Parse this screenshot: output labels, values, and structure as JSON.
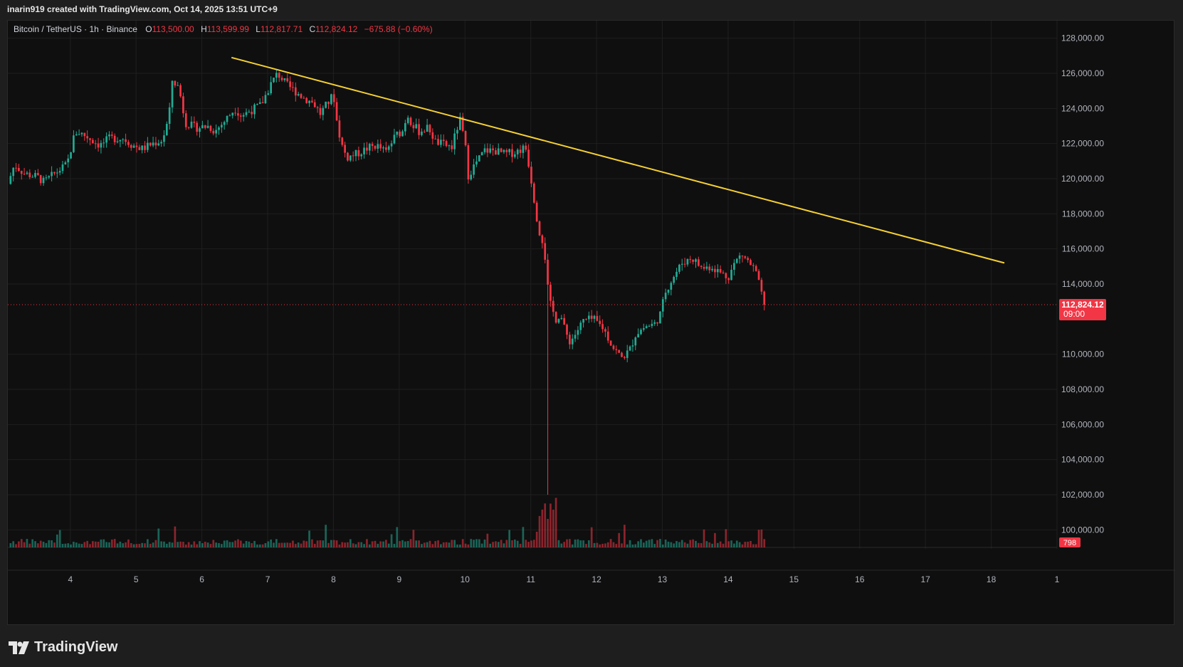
{
  "header": {
    "credit": "inarin919 created with TradingView.com, Oct 14, 2025 13:51 UTC+9"
  },
  "legend": {
    "symbol": "Bitcoin / TetherUS · 1h · Binance",
    "o_label": "O",
    "o_value": "113,500.00",
    "h_label": "H",
    "h_value": "113,599.99",
    "l_label": "L",
    "l_value": "112,817.71",
    "c_label": "C",
    "c_value": "112,824.12",
    "change": "−675.88 (−0.60%)"
  },
  "brand": {
    "name": "TradingView"
  },
  "colors": {
    "up": "#22ab94",
    "down": "#f23645",
    "trendline": "#f5d033",
    "background": "#0f0f0f",
    "grid": "#1f1f1f"
  },
  "chart_data": {
    "type": "candlestick",
    "instrument": "Bitcoin / TetherUS",
    "interval": "1h",
    "exchange": "Binance",
    "y_ticks": [
      "128,000.00",
      "126,000.00",
      "124,000.00",
      "122,000.00",
      "120,000.00",
      "118,000.00",
      "116,000.00",
      "114,000.00",
      "110,000.00",
      "108,000.00",
      "106,000.00",
      "104,000.00",
      "102,000.00",
      "100,000.00"
    ],
    "ylim": [
      99000,
      129000
    ],
    "x_ticks": [
      "4",
      "5",
      "6",
      "7",
      "8",
      "9",
      "10",
      "11",
      "12",
      "13",
      "14",
      "15",
      "16",
      "17",
      "18",
      "1"
    ],
    "x_range_days": [
      3.05,
      19.0
    ],
    "last_price": "112,824.12",
    "countdown": "09:00",
    "last_volume": "798",
    "trendline": {
      "start": [
        6.45,
        126900
      ],
      "end": [
        18.2,
        115200
      ]
    },
    "price_path": [
      [
        3.05,
        119700
      ],
      [
        3.15,
        120800
      ],
      [
        3.3,
        120300
      ],
      [
        3.5,
        120100
      ],
      [
        3.6,
        119800
      ],
      [
        3.8,
        120400
      ],
      [
        3.95,
        120800
      ],
      [
        4.05,
        122300
      ],
      [
        4.1,
        122700
      ],
      [
        4.25,
        122400
      ],
      [
        4.45,
        121900
      ],
      [
        4.6,
        122300
      ],
      [
        4.8,
        122300
      ],
      [
        4.95,
        121900
      ],
      [
        5.1,
        121700
      ],
      [
        5.25,
        122000
      ],
      [
        5.4,
        122200
      ],
      [
        5.5,
        123500
      ],
      [
        5.55,
        125600
      ],
      [
        5.65,
        125200
      ],
      [
        5.75,
        123200
      ],
      [
        5.9,
        122900
      ],
      [
        6.1,
        123000
      ],
      [
        6.2,
        122700
      ],
      [
        6.35,
        123300
      ],
      [
        6.5,
        124000
      ],
      [
        6.6,
        123600
      ],
      [
        6.75,
        123900
      ],
      [
        6.9,
        124200
      ],
      [
        7.05,
        125400
      ],
      [
        7.15,
        126000
      ],
      [
        7.3,
        125300
      ],
      [
        7.45,
        124900
      ],
      [
        7.55,
        124600
      ],
      [
        7.7,
        124300
      ],
      [
        7.8,
        123700
      ],
      [
        7.95,
        124500
      ],
      [
        8.0,
        124800
      ],
      [
        8.05,
        123300
      ],
      [
        8.12,
        122000
      ],
      [
        8.2,
        121200
      ],
      [
        8.35,
        121400
      ],
      [
        8.5,
        121700
      ],
      [
        8.65,
        121900
      ],
      [
        8.8,
        121500
      ],
      [
        8.95,
        122500
      ],
      [
        9.05,
        122700
      ],
      [
        9.12,
        123700
      ],
      [
        9.2,
        123100
      ],
      [
        9.3,
        122700
      ],
      [
        9.45,
        122900
      ],
      [
        9.55,
        122100
      ],
      [
        9.7,
        121900
      ],
      [
        9.8,
        121800
      ],
      [
        9.92,
        123400
      ],
      [
        10.0,
        122000
      ],
      [
        10.05,
        120200
      ],
      [
        10.15,
        120800
      ],
      [
        10.3,
        121600
      ],
      [
        10.45,
        121600
      ],
      [
        10.6,
        121400
      ],
      [
        10.75,
        121500
      ],
      [
        10.92,
        121800
      ],
      [
        10.98,
        120600
      ],
      [
        11.02,
        119600
      ],
      [
        11.08,
        118100
      ],
      [
        11.12,
        117100
      ],
      [
        11.2,
        116300
      ],
      [
        11.25,
        114000
      ],
      [
        11.3,
        112800
      ],
      [
        11.38,
        112000
      ],
      [
        11.45,
        112300
      ],
      [
        11.52,
        111300
      ],
      [
        11.6,
        110700
      ],
      [
        11.7,
        111300
      ],
      [
        11.8,
        111900
      ],
      [
        11.95,
        112000
      ],
      [
        12.1,
        111500
      ],
      [
        12.25,
        110400
      ],
      [
        12.38,
        109800
      ],
      [
        12.5,
        110200
      ],
      [
        12.6,
        111200
      ],
      [
        12.75,
        111600
      ],
      [
        12.88,
        111700
      ],
      [
        12.97,
        112300
      ],
      [
        13.05,
        113600
      ],
      [
        13.15,
        114300
      ],
      [
        13.3,
        115200
      ],
      [
        13.45,
        115500
      ],
      [
        13.6,
        114900
      ],
      [
        13.75,
        115000
      ],
      [
        13.9,
        114600
      ],
      [
        14.0,
        114400
      ],
      [
        14.1,
        115200
      ],
      [
        14.2,
        115700
      ],
      [
        14.3,
        115300
      ],
      [
        14.42,
        114700
      ],
      [
        14.5,
        113500
      ],
      [
        14.57,
        112824
      ]
    ]
  }
}
